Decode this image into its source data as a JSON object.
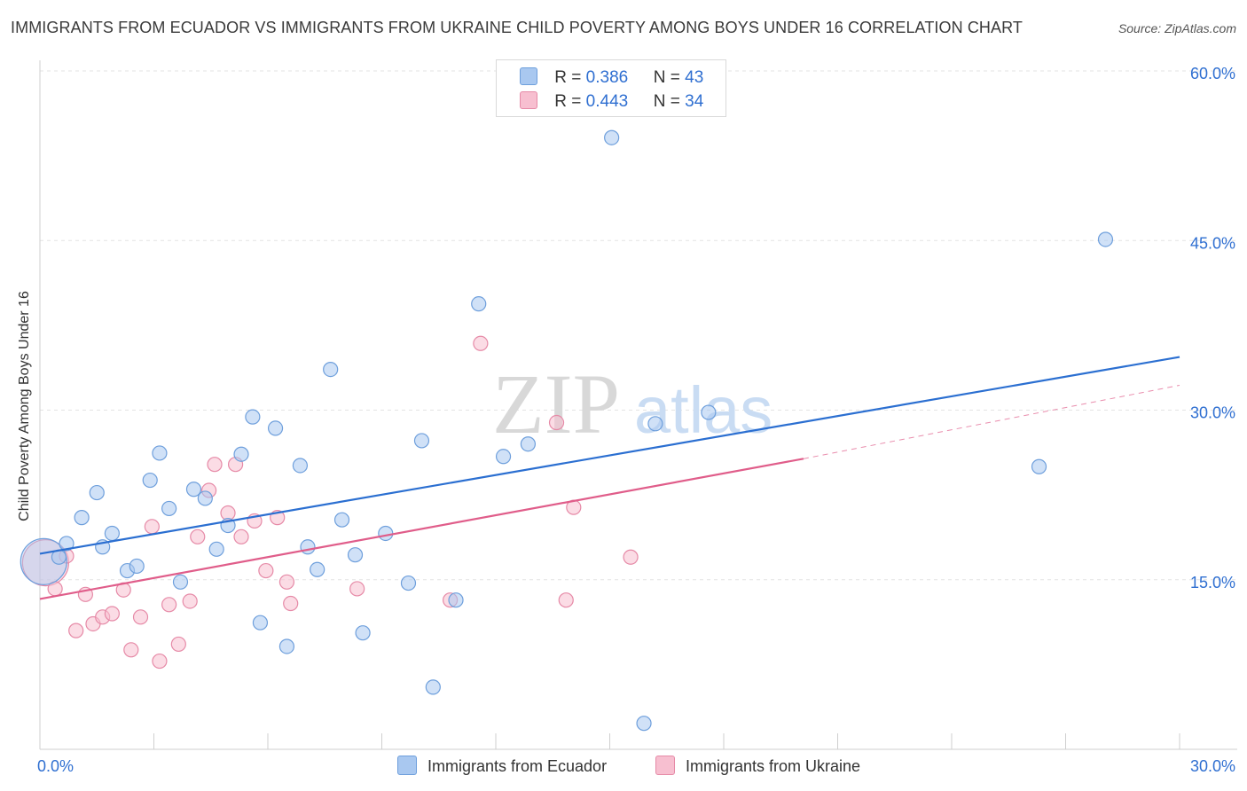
{
  "header": {
    "title": "IMMIGRANTS FROM ECUADOR VS IMMIGRANTS FROM UKRAINE CHILD POVERTY AMONG BOYS UNDER 16 CORRELATION CHART",
    "source": "Source: ZipAtlas.com"
  },
  "watermark": {
    "text_zip": "ZIP",
    "text_atlas": "atlas"
  },
  "legend": {
    "rows": [
      {
        "r_label": "R =",
        "r_value": "0.386",
        "n_label": "N =",
        "n_value": "43"
      },
      {
        "r_label": "R =",
        "r_value": "0.443",
        "n_label": "N =",
        "n_value": "34"
      }
    ]
  },
  "colors": {
    "ecuador_fill": "#a9c8f0",
    "ecuador_stroke": "#6e9fdc",
    "ecuador_line": "#2b6fd1",
    "ukraine_fill": "#f7bfd0",
    "ukraine_stroke": "#e68aa7",
    "ukraine_line": "#e05d8a",
    "tick_label": "#2f6fd1",
    "grid": "#e3e3e3"
  },
  "chart_data": {
    "type": "scatter",
    "title": "IMMIGRANTS FROM ECUADOR VS IMMIGRANTS FROM UKRAINE CHILD POVERTY AMONG BOYS UNDER 16 CORRELATION CHART",
    "xlabel": "",
    "ylabel": "Child Poverty Among Boys Under 16",
    "xlim": [
      0,
      30
    ],
    "ylim": [
      0,
      60
    ],
    "x_tick_labels": [
      "0.0%",
      "30.0%"
    ],
    "y_ticks": [
      15,
      30,
      45,
      60
    ],
    "y_tick_labels": [
      "15.0%",
      "30.0%",
      "45.0%",
      "60.0%"
    ],
    "grid": true,
    "legend_position": "top-center",
    "series": [
      {
        "name": "Immigrants from Ecuador",
        "r": 0.386,
        "n": 43,
        "trend": {
          "x": [
            0,
            30
          ],
          "y": [
            17.3,
            34.7
          ]
        },
        "points": [
          {
            "x": 0.1,
            "y": 16.6,
            "big": true
          },
          {
            "x": 0.5,
            "y": 17.0
          },
          {
            "x": 0.7,
            "y": 18.2
          },
          {
            "x": 1.1,
            "y": 20.5
          },
          {
            "x": 1.5,
            "y": 22.7
          },
          {
            "x": 1.65,
            "y": 17.9
          },
          {
            "x": 1.9,
            "y": 19.1
          },
          {
            "x": 2.3,
            "y": 15.8
          },
          {
            "x": 2.55,
            "y": 16.2
          },
          {
            "x": 2.9,
            "y": 23.8
          },
          {
            "x": 3.15,
            "y": 26.2
          },
          {
            "x": 3.4,
            "y": 21.3
          },
          {
            "x": 3.7,
            "y": 14.8
          },
          {
            "x": 4.05,
            "y": 23.0
          },
          {
            "x": 4.35,
            "y": 22.2
          },
          {
            "x": 4.65,
            "y": 17.7
          },
          {
            "x": 4.95,
            "y": 19.8
          },
          {
            "x": 5.3,
            "y": 26.1
          },
          {
            "x": 5.6,
            "y": 29.4
          },
          {
            "x": 5.8,
            "y": 11.2
          },
          {
            "x": 6.2,
            "y": 28.4
          },
          {
            "x": 6.5,
            "y": 9.1
          },
          {
            "x": 6.85,
            "y": 25.1
          },
          {
            "x": 7.05,
            "y": 17.9
          },
          {
            "x": 7.3,
            "y": 15.9
          },
          {
            "x": 7.65,
            "y": 33.6
          },
          {
            "x": 7.95,
            "y": 20.3
          },
          {
            "x": 8.3,
            "y": 17.2
          },
          {
            "x": 8.5,
            "y": 10.3
          },
          {
            "x": 9.1,
            "y": 19.1
          },
          {
            "x": 9.7,
            "y": 14.7
          },
          {
            "x": 10.05,
            "y": 27.3
          },
          {
            "x": 10.35,
            "y": 5.5
          },
          {
            "x": 10.95,
            "y": 13.2
          },
          {
            "x": 11.55,
            "y": 39.4
          },
          {
            "x": 12.2,
            "y": 25.9
          },
          {
            "x": 12.85,
            "y": 27.0
          },
          {
            "x": 15.05,
            "y": 54.1
          },
          {
            "x": 15.9,
            "y": 2.3
          },
          {
            "x": 16.2,
            "y": 28.8
          },
          {
            "x": 17.6,
            "y": 29.8
          },
          {
            "x": 26.3,
            "y": 25.0
          },
          {
            "x": 28.05,
            "y": 45.1
          }
        ]
      },
      {
        "name": "Immigrants from Ukraine",
        "r": 0.443,
        "n": 34,
        "trend": {
          "x": [
            0,
            20.1
          ],
          "y": [
            13.3,
            25.7
          ]
        },
        "trend_extension": {
          "x": [
            20.1,
            30
          ],
          "y": [
            25.7,
            32.2
          ]
        },
        "points": [
          {
            "x": 0.15,
            "y": 16.5,
            "big": true
          },
          {
            "x": 0.4,
            "y": 14.2
          },
          {
            "x": 0.7,
            "y": 17.1
          },
          {
            "x": 0.95,
            "y": 10.5
          },
          {
            "x": 1.2,
            "y": 13.7
          },
          {
            "x": 1.4,
            "y": 11.1
          },
          {
            "x": 1.65,
            "y": 11.7
          },
          {
            "x": 1.9,
            "y": 12.0
          },
          {
            "x": 2.2,
            "y": 14.1
          },
          {
            "x": 2.4,
            "y": 8.8
          },
          {
            "x": 2.65,
            "y": 11.7
          },
          {
            "x": 2.95,
            "y": 19.7
          },
          {
            "x": 3.15,
            "y": 7.8
          },
          {
            "x": 3.4,
            "y": 12.8
          },
          {
            "x": 3.65,
            "y": 9.3
          },
          {
            "x": 3.95,
            "y": 13.1
          },
          {
            "x": 4.15,
            "y": 18.8
          },
          {
            "x": 4.45,
            "y": 22.9
          },
          {
            "x": 4.6,
            "y": 25.2
          },
          {
            "x": 4.95,
            "y": 20.9
          },
          {
            "x": 5.15,
            "y": 25.2
          },
          {
            "x": 5.3,
            "y": 18.8
          },
          {
            "x": 5.65,
            "y": 20.2
          },
          {
            "x": 5.95,
            "y": 15.8
          },
          {
            "x": 6.25,
            "y": 20.5
          },
          {
            "x": 6.5,
            "y": 14.8
          },
          {
            "x": 6.6,
            "y": 12.9
          },
          {
            "x": 8.35,
            "y": 14.2
          },
          {
            "x": 10.8,
            "y": 13.2
          },
          {
            "x": 11.6,
            "y": 35.9
          },
          {
            "x": 13.6,
            "y": 28.9
          },
          {
            "x": 13.85,
            "y": 13.2
          },
          {
            "x": 14.05,
            "y": 21.4
          },
          {
            "x": 15.55,
            "y": 17.0
          }
        ]
      }
    ]
  }
}
